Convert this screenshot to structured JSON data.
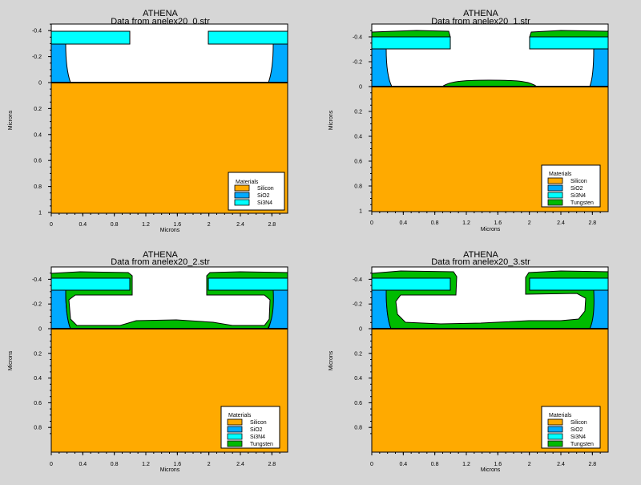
{
  "colors": {
    "background": "#d6d6d6",
    "silicon": "#ffaa00",
    "sio2": "#00aaff",
    "si3n4": "#00ffff",
    "tungsten": "#00bb00",
    "outline": "#000000"
  },
  "panels": [
    {
      "title": "ATHENA",
      "subtitle": "Data from anelex20_0.str",
      "xlabel": "Microns",
      "ylabel": "Microns",
      "x_ticks": [
        "0",
        "0.4",
        "0.8",
        "1.2",
        "1.6",
        "2",
        "2.4",
        "2.8"
      ],
      "y_ticks": [
        "-0.4",
        "-0.2",
        "0",
        "0.2",
        "0.4",
        "0.6",
        "0.8",
        "1"
      ],
      "legend_title": "Materials",
      "legend": [
        {
          "label": "Silicon",
          "color": "#ffaa00"
        },
        {
          "label": "SiO2",
          "color": "#00aaff"
        },
        {
          "label": "Si3N4",
          "color": "#00ffff"
        }
      ]
    },
    {
      "title": "ATHENA",
      "subtitle": "Data from anelex20_1.str",
      "xlabel": "Microns",
      "ylabel": "Microns",
      "x_ticks": [
        "0",
        "0.4",
        "0.8",
        "1.2",
        "1.6",
        "2",
        "2.4",
        "2.8"
      ],
      "y_ticks": [
        "-0.4",
        "-0.2",
        "0",
        "0.2",
        "0.4",
        "0.6",
        "0.8",
        "1"
      ],
      "legend_title": "Materials",
      "legend": [
        {
          "label": "Silicon",
          "color": "#ffaa00"
        },
        {
          "label": "SiO2",
          "color": "#00aaff"
        },
        {
          "label": "Si3N4",
          "color": "#00ffff"
        },
        {
          "label": "Tungsten",
          "color": "#00bb00"
        }
      ]
    },
    {
      "title": "ATHENA",
      "subtitle": "Data from anelex20_2.str",
      "xlabel": "Microns",
      "ylabel": "Microns",
      "x_ticks": [
        "0",
        "0.4",
        "0.8",
        "1.2",
        "1.6",
        "2",
        "2.4",
        "2.8"
      ],
      "y_ticks": [
        "-0.4",
        "-0.2",
        "0",
        "0.2",
        "0.4",
        "0.6",
        "0.8"
      ],
      "legend_title": "Materials",
      "legend": [
        {
          "label": "Silicon",
          "color": "#ffaa00"
        },
        {
          "label": "SiO2",
          "color": "#00aaff"
        },
        {
          "label": "Si3N4",
          "color": "#00ffff"
        },
        {
          "label": "Tungsten",
          "color": "#00bb00"
        }
      ]
    },
    {
      "title": "ATHENA",
      "subtitle": "Data from anelex20_3.str",
      "xlabel": "Microns",
      "ylabel": "Microns",
      "x_ticks": [
        "0",
        "0.4",
        "0.8",
        "1.2",
        "1.6",
        "2",
        "2.4",
        "2.8"
      ],
      "y_ticks": [
        "-0.4",
        "-0.2",
        "0",
        "0.2",
        "0.4",
        "0.6",
        "0.8"
      ],
      "legend_title": "Materials",
      "legend": [
        {
          "label": "Silicon",
          "color": "#ffaa00"
        },
        {
          "label": "SiO2",
          "color": "#00aaff"
        },
        {
          "label": "Si3N4",
          "color": "#00ffff"
        },
        {
          "label": "Tungsten",
          "color": "#00bb00"
        }
      ]
    }
  ]
}
